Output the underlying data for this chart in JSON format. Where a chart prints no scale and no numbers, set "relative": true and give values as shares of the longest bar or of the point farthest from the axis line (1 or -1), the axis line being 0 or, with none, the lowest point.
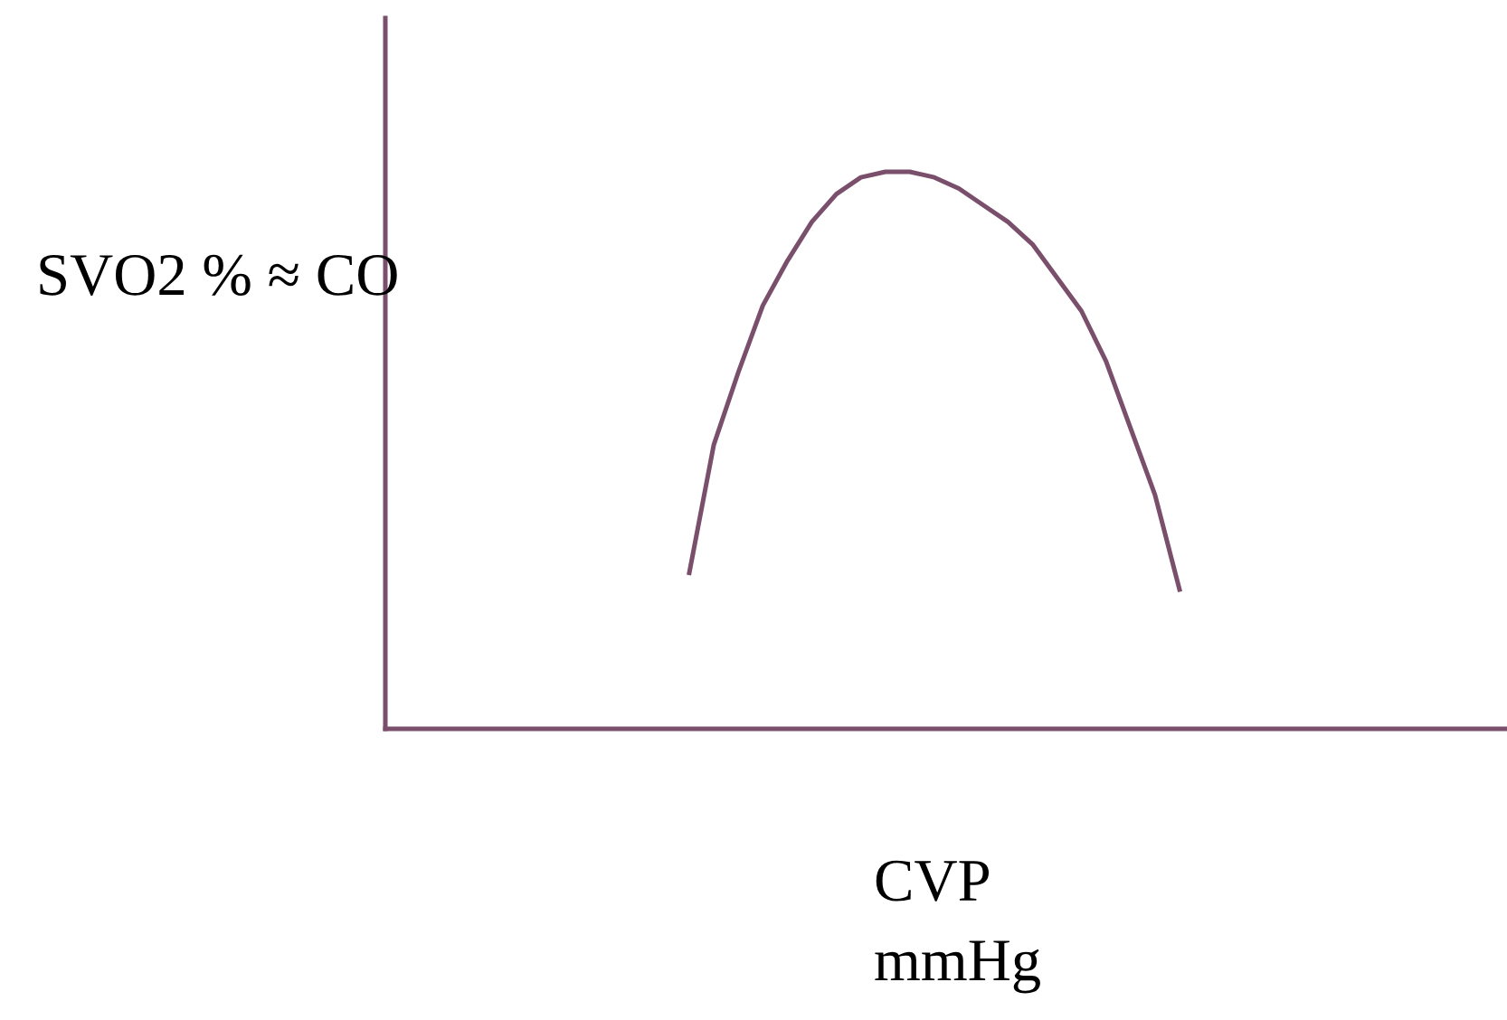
{
  "chart_data": {
    "type": "line",
    "relative": true,
    "xlabel": "CVP\nmmHg",
    "ylabel": "SVO2 % ≈ CO",
    "categories": [
      null,
      null,
      null,
      null,
      null,
      null,
      null,
      null,
      null,
      null,
      null,
      null,
      null,
      null,
      null,
      null,
      null,
      null,
      null,
      null,
      null
    ],
    "series": [
      {
        "color": "#7a4f6c",
        "values": [
          0.28,
          0.51,
          0.64,
          0.76,
          0.84,
          0.91,
          0.96,
          0.99,
          1,
          1,
          0.99,
          0.97,
          0.94,
          0.91,
          0.87,
          0.81,
          0.75,
          0.66,
          0.54,
          0.42,
          0.25
        ]
      }
    ],
    "grid": false,
    "legend": false,
    "marker": "none",
    "line_style": "solid"
  }
}
